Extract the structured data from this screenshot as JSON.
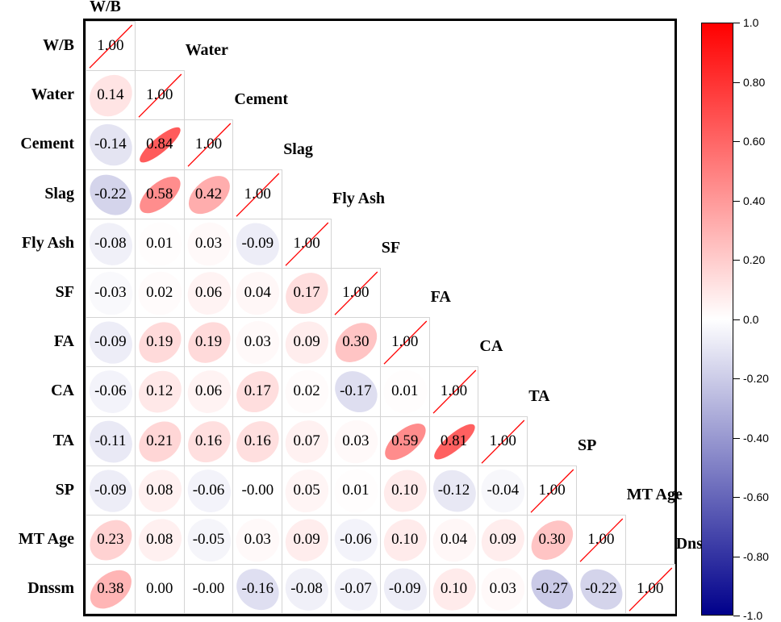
{
  "chart_data": {
    "type": "heatmap",
    "subtype": "correlation-matrix-lower-triangle-ellipses",
    "title": "",
    "variables": [
      "W/B",
      "Water",
      "Cement",
      "Slag",
      "Fly Ash",
      "SF",
      "FA",
      "CA",
      "TA",
      "SP",
      "MT Age",
      "Dnssm"
    ],
    "matrix": [
      [
        1.0
      ],
      [
        0.14,
        1.0
      ],
      [
        -0.14,
        0.84,
        1.0
      ],
      [
        -0.22,
        0.58,
        0.42,
        1.0
      ],
      [
        -0.08,
        0.01,
        0.03,
        -0.09,
        1.0
      ],
      [
        -0.03,
        0.02,
        0.06,
        0.04,
        0.17,
        1.0
      ],
      [
        -0.09,
        0.19,
        0.19,
        0.03,
        0.09,
        0.3,
        1.0
      ],
      [
        -0.06,
        0.12,
        0.06,
        0.17,
        0.02,
        -0.17,
        0.01,
        1.0
      ],
      [
        -0.11,
        0.21,
        0.16,
        0.16,
        0.07,
        0.03,
        0.59,
        0.81,
        1.0
      ],
      [
        -0.09,
        0.08,
        -0.06,
        -0.0,
        0.05,
        0.01,
        0.1,
        -0.12,
        -0.04,
        1.0
      ],
      [
        0.23,
        0.08,
        -0.05,
        0.03,
        0.09,
        -0.06,
        0.1,
        0.04,
        0.09,
        0.3,
        1.0
      ],
      [
        0.38,
        0.0,
        -0.0,
        -0.16,
        -0.08,
        -0.07,
        -0.09,
        0.1,
        0.03,
        -0.27,
        -0.22,
        1.0
      ]
    ],
    "value_labels": [
      [
        "1.00"
      ],
      [
        "0.14",
        "1.00"
      ],
      [
        "-0.14",
        "0.84",
        "1.00"
      ],
      [
        "-0.22",
        "0.58",
        "0.42",
        "1.00"
      ],
      [
        "-0.08",
        "0.01",
        "0.03",
        "-0.09",
        "1.00"
      ],
      [
        "-0.03",
        "0.02",
        "0.06",
        "0.04",
        "0.17",
        "1.00"
      ],
      [
        "-0.09",
        "0.19",
        "0.19",
        "0.03",
        "0.09",
        "0.30",
        "1.00"
      ],
      [
        "-0.06",
        "0.12",
        "0.06",
        "0.17",
        "0.02",
        "-0.17",
        "0.01",
        "1.00"
      ],
      [
        "-0.11",
        "0.21",
        "0.16",
        "0.16",
        "0.07",
        "0.03",
        "0.59",
        "0.81",
        "1.00"
      ],
      [
        "-0.09",
        "0.08",
        "-0.06",
        "-0.00",
        "0.05",
        "0.01",
        "0.10",
        "-0.12",
        "-0.04",
        "1.00"
      ],
      [
        "0.23",
        "0.08",
        "-0.05",
        "0.03",
        "0.09",
        "-0.06",
        "0.10",
        "0.04",
        "0.09",
        "0.30",
        "1.00"
      ],
      [
        "0.38",
        "0.00",
        "-0.00",
        "-0.16",
        "-0.08",
        "-0.07",
        "-0.09",
        "0.10",
        "0.03",
        "-0.27",
        "-0.22",
        "1.00"
      ]
    ],
    "colorbar": {
      "range": [
        -1.0,
        1.0
      ],
      "ticks": [
        "1.0",
        "0.80",
        "0.60",
        "0.40",
        "0.20",
        "0.0",
        "-0.20",
        "-0.40",
        "-0.60",
        "-0.80",
        "-1.0"
      ],
      "colors": {
        "positive": "#ff0000",
        "zero": "#ffffff",
        "negative": "#00008b"
      }
    },
    "diagonal_marker": "red diagonal line",
    "grid": true,
    "legend_position": "right"
  }
}
